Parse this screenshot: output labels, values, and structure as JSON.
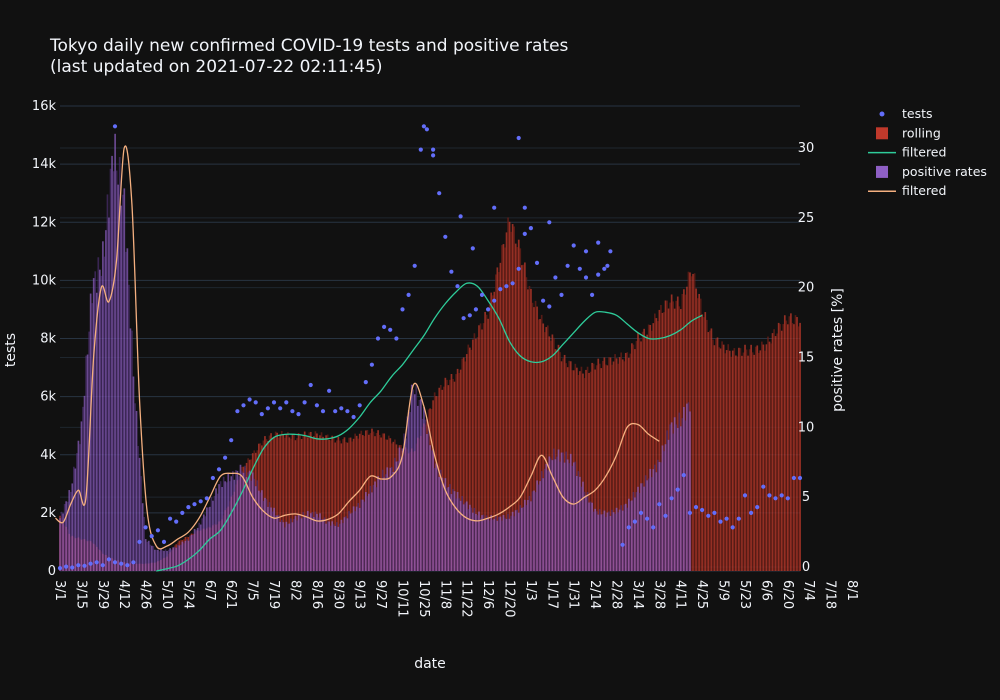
{
  "colors": {
    "background": "#111111",
    "grid": "#283442",
    "text": "#f2f5fa",
    "tests": "#636efa",
    "rolling": "#c0392b",
    "rolling_dark": "#6e1f17",
    "tests_filtered": "#2ecc9a",
    "positive": "#8e5fc4",
    "positive_dark": "#4a2d6e",
    "positive_filtered": "#f5b080"
  },
  "chart_data": {
    "type": "bar",
    "title_line1": "Tokyo daily new confirmed COVID-19 tests and positive rates",
    "title_line2": "(last updated on 2021-07-22 02:11:45)",
    "xlabel": "date",
    "ylabel": "tests",
    "y2label": "positive rates [%]",
    "ylim": [
      0,
      16000
    ],
    "y2lim": [
      0,
      33
    ],
    "yticks": [
      {
        "v": 0,
        "label": "0"
      },
      {
        "v": 2000,
        "label": "2k"
      },
      {
        "v": 4000,
        "label": "4k"
      },
      {
        "v": 6000,
        "label": "6k"
      },
      {
        "v": 8000,
        "label": "8k"
      },
      {
        "v": 10000,
        "label": "10k"
      },
      {
        "v": 12000,
        "label": "12k"
      },
      {
        "v": 14000,
        "label": "14k"
      },
      {
        "v": 16000,
        "label": "16k"
      }
    ],
    "y2ticks": [
      {
        "v": 0,
        "label": "0"
      },
      {
        "v": 5,
        "label": "5"
      },
      {
        "v": 10,
        "label": "10"
      },
      {
        "v": 15,
        "label": "15"
      },
      {
        "v": 20,
        "label": "20"
      },
      {
        "v": 25,
        "label": "25"
      },
      {
        "v": 30,
        "label": "30"
      }
    ],
    "xticks": [
      "3/1",
      "3/15",
      "3/29",
      "4/12",
      "4/26",
      "5/10",
      "5/24",
      "6/7",
      "6/21",
      "7/5",
      "7/19",
      "8/2",
      "8/16",
      "8/30",
      "9/13",
      "9/27",
      "10/11",
      "10/25",
      "11/8",
      "11/22",
      "12/6",
      "12/20",
      "1/3",
      "1/17",
      "1/31",
      "2/14",
      "2/28",
      "3/14",
      "3/28",
      "4/11",
      "4/25",
      "5/9",
      "5/23",
      "6/6",
      "6/20",
      "7/4",
      "7/18",
      "8/1"
    ],
    "legend": [
      {
        "name": "tests",
        "kind": "marker",
        "color": "#636efa"
      },
      {
        "name": "rolling",
        "kind": "bar",
        "color": "#c0392b"
      },
      {
        "name": "filtered",
        "kind": "line",
        "color": "#2ecc9a"
      },
      {
        "name": "positive rates",
        "kind": "bar",
        "color": "#8e5fc4"
      },
      {
        "name": "filtered",
        "kind": "line",
        "color": "#f5b080"
      }
    ],
    "rolling_tests_knots": [
      [
        0,
        1900
      ],
      [
        7,
        1200
      ],
      [
        14,
        1100
      ],
      [
        21,
        1000
      ],
      [
        28,
        600
      ],
      [
        35,
        400
      ],
      [
        42,
        300
      ],
      [
        49,
        250
      ],
      [
        56,
        250
      ],
      [
        63,
        300
      ],
      [
        70,
        500
      ],
      [
        77,
        1000
      ],
      [
        84,
        1200
      ],
      [
        91,
        1400
      ],
      [
        98,
        1500
      ],
      [
        105,
        1700
      ],
      [
        112,
        2500
      ],
      [
        119,
        3500
      ],
      [
        126,
        4000
      ],
      [
        133,
        4500
      ],
      [
        140,
        4700
      ],
      [
        147,
        4700
      ],
      [
        154,
        4600
      ],
      [
        161,
        4700
      ],
      [
        168,
        4700
      ],
      [
        175,
        4600
      ],
      [
        182,
        4500
      ],
      [
        189,
        4500
      ],
      [
        196,
        4700
      ],
      [
        203,
        4800
      ],
      [
        210,
        4700
      ],
      [
        217,
        4500
      ],
      [
        224,
        4200
      ],
      [
        231,
        4100
      ],
      [
        238,
        5000
      ],
      [
        245,
        6000
      ],
      [
        252,
        6500
      ],
      [
        259,
        6700
      ],
      [
        266,
        7500
      ],
      [
        273,
        8200
      ],
      [
        280,
        8900
      ],
      [
        287,
        10500
      ],
      [
        294,
        12100
      ],
      [
        301,
        11000
      ],
      [
        308,
        9500
      ],
      [
        315,
        8600
      ],
      [
        322,
        8000
      ],
      [
        329,
        7300
      ],
      [
        336,
        7000
      ],
      [
        343,
        6800
      ],
      [
        350,
        7100
      ],
      [
        357,
        7200
      ],
      [
        364,
        7300
      ],
      [
        371,
        7400
      ],
      [
        378,
        8000
      ],
      [
        385,
        8300
      ],
      [
        392,
        8900
      ],
      [
        399,
        9300
      ],
      [
        406,
        9200
      ],
      [
        413,
        10400
      ],
      [
        420,
        9000
      ],
      [
        427,
        8000
      ],
      [
        434,
        7700
      ],
      [
        441,
        7500
      ],
      [
        448,
        7600
      ],
      [
        455,
        7600
      ],
      [
        462,
        7800
      ],
      [
        469,
        8300
      ],
      [
        476,
        8700
      ],
      [
        484,
        8600
      ]
    ],
    "tests_filtered_knots": [
      [
        63,
        0
      ],
      [
        70,
        80
      ],
      [
        77,
        180
      ],
      [
        84,
        400
      ],
      [
        91,
        700
      ],
      [
        98,
        1100
      ],
      [
        105,
        1400
      ],
      [
        112,
        2000
      ],
      [
        119,
        2700
      ],
      [
        126,
        3500
      ],
      [
        133,
        4200
      ],
      [
        140,
        4600
      ],
      [
        147,
        4700
      ],
      [
        154,
        4700
      ],
      [
        161,
        4650
      ],
      [
        168,
        4550
      ],
      [
        175,
        4550
      ],
      [
        182,
        4650
      ],
      [
        189,
        4900
      ],
      [
        196,
        5300
      ],
      [
        203,
        5800
      ],
      [
        210,
        6200
      ],
      [
        217,
        6700
      ],
      [
        224,
        7100
      ],
      [
        231,
        7600
      ],
      [
        238,
        8100
      ],
      [
        245,
        8700
      ],
      [
        252,
        9200
      ],
      [
        259,
        9600
      ],
      [
        266,
        9900
      ],
      [
        273,
        9800
      ],
      [
        280,
        9300
      ],
      [
        287,
        8700
      ],
      [
        294,
        7900
      ],
      [
        301,
        7400
      ],
      [
        308,
        7200
      ],
      [
        315,
        7200
      ],
      [
        322,
        7400
      ],
      [
        329,
        7800
      ],
      [
        336,
        8200
      ],
      [
        343,
        8600
      ],
      [
        350,
        8900
      ],
      [
        357,
        8900
      ],
      [
        364,
        8800
      ],
      [
        371,
        8500
      ],
      [
        378,
        8200
      ],
      [
        385,
        8000
      ],
      [
        392,
        8000
      ],
      [
        399,
        8100
      ],
      [
        406,
        8300
      ],
      [
        413,
        8600
      ],
      [
        420,
        8800
      ]
    ],
    "positive_knots": [
      [
        0,
        3.5
      ],
      [
        7,
        5.5
      ],
      [
        14,
        10
      ],
      [
        21,
        20
      ],
      [
        28,
        22
      ],
      [
        35,
        30
      ],
      [
        42,
        26
      ],
      [
        49,
        12
      ],
      [
        56,
        2
      ],
      [
        63,
        1.2
      ],
      [
        70,
        1.2
      ],
      [
        77,
        1.5
      ],
      [
        84,
        2
      ],
      [
        91,
        3
      ],
      [
        98,
        4.5
      ],
      [
        105,
        6
      ],
      [
        112,
        6.5
      ],
      [
        119,
        7
      ],
      [
        126,
        6.5
      ],
      [
        133,
        5
      ],
      [
        140,
        4
      ],
      [
        147,
        3
      ],
      [
        154,
        3.5
      ],
      [
        161,
        3.8
      ],
      [
        168,
        3.8
      ],
      [
        175,
        3.2
      ],
      [
        182,
        3.0
      ],
      [
        189,
        3.8
      ],
      [
        196,
        4.5
      ],
      [
        203,
        5.5
      ],
      [
        210,
        6.5
      ],
      [
        217,
        7
      ],
      [
        224,
        8.5
      ],
      [
        231,
        13
      ],
      [
        238,
        11
      ],
      [
        245,
        7.5
      ],
      [
        252,
        6
      ],
      [
        259,
        5.2
      ],
      [
        266,
        4.5
      ],
      [
        273,
        3.8
      ],
      [
        280,
        3.5
      ],
      [
        287,
        3.5
      ],
      [
        294,
        3.6
      ],
      [
        301,
        4.2
      ],
      [
        308,
        5
      ],
      [
        315,
        6.5
      ],
      [
        322,
        8
      ],
      [
        329,
        8
      ],
      [
        336,
        7.5
      ],
      [
        343,
        5.5
      ],
      [
        350,
        4
      ],
      [
        357,
        3.8
      ],
      [
        364,
        4
      ],
      [
        371,
        4.5
      ],
      [
        378,
        5.5
      ],
      [
        385,
        6.5
      ],
      [
        392,
        7.5
      ],
      [
        399,
        10
      ],
      [
        406,
        10.5
      ],
      [
        413,
        12
      ]
    ],
    "positive_filtered_knots": [
      [
        -3,
        3.5
      ],
      [
        2,
        3.2
      ],
      [
        7,
        4.5
      ],
      [
        12,
        5.5
      ],
      [
        17,
        5
      ],
      [
        22,
        15
      ],
      [
        27,
        20
      ],
      [
        32,
        19
      ],
      [
        37,
        22
      ],
      [
        42,
        30
      ],
      [
        47,
        26
      ],
      [
        52,
        12
      ],
      [
        57,
        4
      ],
      [
        63,
        1.5
      ],
      [
        70,
        1.5
      ],
      [
        77,
        2
      ],
      [
        84,
        2.5
      ],
      [
        91,
        3.5
      ],
      [
        98,
        5
      ],
      [
        105,
        6.5
      ],
      [
        112,
        6.7
      ],
      [
        119,
        6.5
      ],
      [
        126,
        5
      ],
      [
        133,
        4
      ],
      [
        140,
        3.5
      ],
      [
        147,
        3.7
      ],
      [
        154,
        3.8
      ],
      [
        161,
        3.6
      ],
      [
        168,
        3.3
      ],
      [
        175,
        3.4
      ],
      [
        182,
        3.8
      ],
      [
        189,
        4.7
      ],
      [
        196,
        5.5
      ],
      [
        203,
        6.5
      ],
      [
        210,
        6.3
      ],
      [
        217,
        6.5
      ],
      [
        224,
        8
      ],
      [
        231,
        13
      ],
      [
        238,
        11.5
      ],
      [
        245,
        8
      ],
      [
        252,
        5.5
      ],
      [
        259,
        4.2
      ],
      [
        266,
        3.5
      ],
      [
        273,
        3.3
      ],
      [
        280,
        3.5
      ],
      [
        287,
        3.8
      ],
      [
        294,
        4.3
      ],
      [
        301,
        5
      ],
      [
        308,
        6.5
      ],
      [
        315,
        8
      ],
      [
        322,
        6.5
      ],
      [
        329,
        5
      ],
      [
        336,
        4.5
      ],
      [
        343,
        5
      ],
      [
        350,
        5.5
      ],
      [
        357,
        6.5
      ],
      [
        364,
        8
      ],
      [
        371,
        10
      ],
      [
        378,
        10.2
      ],
      [
        385,
        9.5
      ],
      [
        392,
        9
      ]
    ],
    "test_dots": [
      [
        0,
        100
      ],
      [
        4,
        150
      ],
      [
        8,
        120
      ],
      [
        12,
        200
      ],
      [
        16,
        180
      ],
      [
        20,
        250
      ],
      [
        24,
        300
      ],
      [
        28,
        200
      ],
      [
        32,
        400
      ],
      [
        36,
        300
      ],
      [
        40,
        250
      ],
      [
        44,
        200
      ],
      [
        48,
        300
      ],
      [
        52,
        1000
      ],
      [
        56,
        1500
      ],
      [
        60,
        1200
      ],
      [
        64,
        1400
      ],
      [
        68,
        1000
      ],
      [
        72,
        1800
      ],
      [
        76,
        1700
      ],
      [
        80,
        2000
      ],
      [
        84,
        2200
      ],
      [
        88,
        2300
      ],
      [
        92,
        2400
      ],
      [
        96,
        2500
      ],
      [
        100,
        3200
      ],
      [
        104,
        3500
      ],
      [
        108,
        3900
      ],
      [
        112,
        4500
      ],
      [
        116,
        5500
      ],
      [
        120,
        5700
      ],
      [
        124,
        5900
      ],
      [
        128,
        5800
      ],
      [
        132,
        5400
      ],
      [
        136,
        5600
      ],
      [
        140,
        5800
      ],
      [
        144,
        5600
      ],
      [
        148,
        5800
      ],
      [
        152,
        5500
      ],
      [
        156,
        5400
      ],
      [
        160,
        5800
      ],
      [
        164,
        6400
      ],
      [
        168,
        5700
      ],
      [
        172,
        5500
      ],
      [
        176,
        6200
      ],
      [
        180,
        5500
      ],
      [
        184,
        5600
      ],
      [
        188,
        5500
      ],
      [
        192,
        5300
      ],
      [
        196,
        5700
      ],
      [
        200,
        6500
      ],
      [
        204,
        7100
      ],
      [
        208,
        8000
      ],
      [
        212,
        8400
      ],
      [
        216,
        8300
      ],
      [
        220,
        8000
      ],
      [
        224,
        9000
      ],
      [
        228,
        9500
      ],
      [
        232,
        10500
      ],
      [
        236,
        14500
      ],
      [
        240,
        15200
      ],
      [
        244,
        14300
      ],
      [
        248,
        13000
      ],
      [
        252,
        11500
      ],
      [
        256,
        10300
      ],
      [
        260,
        9800
      ],
      [
        264,
        8700
      ],
      [
        268,
        8800
      ],
      [
        272,
        9000
      ],
      [
        276,
        9500
      ],
      [
        280,
        9000
      ],
      [
        284,
        9300
      ],
      [
        288,
        9700
      ],
      [
        292,
        9800
      ],
      [
        296,
        9900
      ],
      [
        300,
        10400
      ],
      [
        304,
        11600
      ],
      [
        308,
        11800
      ],
      [
        312,
        10600
      ],
      [
        316,
        9300
      ],
      [
        320,
        9100
      ],
      [
        324,
        10100
      ],
      [
        328,
        9500
      ],
      [
        332,
        10500
      ],
      [
        336,
        11200
      ],
      [
        340,
        10400
      ],
      [
        344,
        10100
      ],
      [
        348,
        9500
      ],
      [
        352,
        10200
      ],
      [
        356,
        10400
      ],
      [
        360,
        11000
      ],
      [
        368,
        900
      ],
      [
        372,
        1500
      ],
      [
        376,
        1700
      ],
      [
        380,
        2000
      ],
      [
        384,
        1800
      ],
      [
        388,
        1500
      ],
      [
        392,
        2300
      ],
      [
        396,
        1900
      ],
      [
        400,
        2500
      ],
      [
        404,
        2800
      ],
      [
        408,
        3300
      ],
      [
        412,
        2000
      ],
      [
        416,
        2200
      ],
      [
        420,
        2100
      ],
      [
        424,
        1900
      ],
      [
        428,
        2000
      ],
      [
        432,
        1700
      ],
      [
        436,
        1800
      ],
      [
        440,
        1500
      ],
      [
        444,
        1800
      ],
      [
        448,
        2600
      ],
      [
        452,
        2000
      ],
      [
        456,
        2200
      ],
      [
        460,
        2900
      ],
      [
        464,
        2600
      ],
      [
        468,
        2500
      ],
      [
        472,
        2600
      ],
      [
        476,
        2500
      ],
      [
        480,
        3200
      ],
      [
        484,
        3200
      ],
      [
        36,
        15300
      ],
      [
        238,
        15300
      ],
      [
        244,
        14500
      ],
      [
        262,
        12200
      ],
      [
        270,
        11100
      ],
      [
        284,
        12500
      ],
      [
        300,
        14900
      ],
      [
        304,
        12500
      ],
      [
        320,
        12000
      ],
      [
        344,
        11000
      ],
      [
        352,
        11300
      ],
      [
        358,
        10500
      ]
    ]
  }
}
